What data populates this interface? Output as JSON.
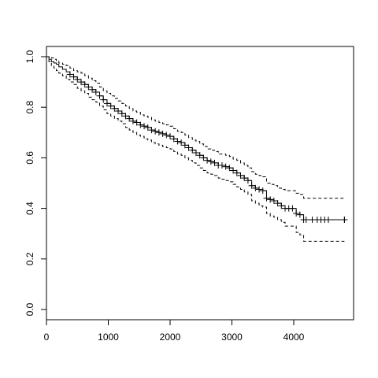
{
  "chart_data": {
    "type": "line",
    "title": "",
    "xlabel": "",
    "ylabel": "",
    "xlim": [
      0,
      4800
    ],
    "ylim": [
      0,
      1.0
    ],
    "x_ticks": [
      0,
      1000,
      2000,
      3000,
      4000
    ],
    "x_tick_labels": [
      "0",
      "1000",
      "2000",
      "3000",
      "4000"
    ],
    "y_ticks": [
      0,
      0.2,
      0.4,
      0.6,
      0.8,
      1.0
    ],
    "y_tick_labels": [
      "0.0",
      "0.2",
      "0.4",
      "0.6",
      "0.8",
      "1.0"
    ],
    "grid": false,
    "legend": "none",
    "series": [
      {
        "line_style": "solid",
        "color": "#000000",
        "censor_marks": true,
        "x": [
          0,
          40,
          80,
          120,
          160,
          200,
          260,
          320,
          380,
          440,
          500,
          560,
          620,
          680,
          740,
          800,
          860,
          920,
          980,
          1040,
          1100,
          1160,
          1220,
          1280,
          1340,
          1400,
          1460,
          1520,
          1580,
          1640,
          1700,
          1760,
          1820,
          1880,
          1940,
          2000,
          2060,
          2120,
          2180,
          2240,
          2300,
          2360,
          2420,
          2480,
          2540,
          2600,
          2660,
          2720,
          2780,
          2840,
          2900,
          2960,
          3020,
          3080,
          3140,
          3200,
          3260,
          3320,
          3380,
          3440,
          3500,
          3560,
          3620,
          3680,
          3740,
          3800,
          3860,
          3920,
          3980,
          4040,
          4100,
          4160,
          4200,
          4820
        ],
        "y": [
          1.0,
          0.99,
          0.98,
          0.975,
          0.97,
          0.96,
          0.95,
          0.94,
          0.93,
          0.92,
          0.91,
          0.9,
          0.89,
          0.88,
          0.87,
          0.86,
          0.845,
          0.83,
          0.815,
          0.805,
          0.795,
          0.785,
          0.775,
          0.765,
          0.755,
          0.745,
          0.74,
          0.73,
          0.725,
          0.72,
          0.71,
          0.705,
          0.7,
          0.695,
          0.69,
          0.685,
          0.675,
          0.665,
          0.66,
          0.65,
          0.64,
          0.63,
          0.62,
          0.61,
          0.6,
          0.59,
          0.585,
          0.58,
          0.57,
          0.57,
          0.565,
          0.56,
          0.55,
          0.54,
          0.53,
          0.52,
          0.51,
          0.49,
          0.48,
          0.475,
          0.47,
          0.44,
          0.435,
          0.43,
          0.42,
          0.41,
          0.4,
          0.4,
          0.4,
          0.38,
          0.375,
          0.355,
          0.355,
          0.355
        ]
      },
      {
        "line_style": "dashed",
        "color": "#000000",
        "x": [
          0,
          40,
          80,
          120,
          160,
          200,
          260,
          320,
          380,
          440,
          500,
          560,
          620,
          680,
          740,
          800,
          860,
          920,
          980,
          1040,
          1100,
          1160,
          1220,
          1280,
          1340,
          1400,
          1460,
          1520,
          1580,
          1640,
          1700,
          1760,
          1820,
          1880,
          1940,
          2000,
          2060,
          2120,
          2180,
          2240,
          2300,
          2360,
          2420,
          2480,
          2540,
          2600,
          2660,
          2720,
          2780,
          2840,
          2900,
          2960,
          3020,
          3080,
          3140,
          3200,
          3260,
          3320,
          3380,
          3440,
          3500,
          3560,
          3620,
          3680,
          3740,
          3800,
          3860,
          3920,
          3980,
          4040,
          4100,
          4160,
          4200,
          4820
        ],
        "y": [
          1.0,
          1.0,
          0.995,
          0.99,
          0.985,
          0.975,
          0.97,
          0.965,
          0.955,
          0.945,
          0.94,
          0.935,
          0.925,
          0.915,
          0.905,
          0.895,
          0.88,
          0.865,
          0.855,
          0.845,
          0.835,
          0.825,
          0.815,
          0.805,
          0.795,
          0.785,
          0.78,
          0.77,
          0.765,
          0.76,
          0.75,
          0.745,
          0.74,
          0.735,
          0.73,
          0.725,
          0.715,
          0.705,
          0.7,
          0.69,
          0.68,
          0.67,
          0.665,
          0.655,
          0.645,
          0.635,
          0.63,
          0.625,
          0.615,
          0.615,
          0.61,
          0.605,
          0.595,
          0.59,
          0.58,
          0.57,
          0.56,
          0.545,
          0.535,
          0.53,
          0.525,
          0.5,
          0.495,
          0.49,
          0.48,
          0.475,
          0.47,
          0.47,
          0.47,
          0.46,
          0.455,
          0.44,
          0.44,
          0.44
        ]
      },
      {
        "line_style": "dashed",
        "color": "#000000",
        "x": [
          0,
          40,
          80,
          120,
          160,
          200,
          260,
          320,
          380,
          440,
          500,
          560,
          620,
          680,
          740,
          800,
          860,
          920,
          980,
          1040,
          1100,
          1160,
          1220,
          1280,
          1340,
          1400,
          1460,
          1520,
          1580,
          1640,
          1700,
          1760,
          1820,
          1880,
          1940,
          2000,
          2060,
          2120,
          2180,
          2240,
          2300,
          2360,
          2420,
          2480,
          2540,
          2600,
          2660,
          2720,
          2780,
          2840,
          2900,
          2960,
          3020,
          3080,
          3140,
          3200,
          3260,
          3320,
          3380,
          3440,
          3500,
          3560,
          3620,
          3680,
          3740,
          3800,
          3860,
          3920,
          3980,
          4040,
          4100,
          4160,
          4200,
          4820
        ],
        "y": [
          1.0,
          0.98,
          0.965,
          0.955,
          0.945,
          0.935,
          0.925,
          0.91,
          0.9,
          0.89,
          0.875,
          0.865,
          0.855,
          0.84,
          0.83,
          0.82,
          0.805,
          0.79,
          0.775,
          0.765,
          0.755,
          0.745,
          0.735,
          0.72,
          0.71,
          0.7,
          0.69,
          0.685,
          0.675,
          0.67,
          0.66,
          0.655,
          0.65,
          0.645,
          0.64,
          0.635,
          0.625,
          0.615,
          0.61,
          0.6,
          0.59,
          0.58,
          0.57,
          0.56,
          0.55,
          0.54,
          0.535,
          0.53,
          0.52,
          0.515,
          0.51,
          0.505,
          0.495,
          0.485,
          0.475,
          0.465,
          0.455,
          0.43,
          0.42,
          0.41,
          0.405,
          0.38,
          0.37,
          0.365,
          0.355,
          0.345,
          0.33,
          0.33,
          0.33,
          0.305,
          0.295,
          0.27,
          0.27,
          0.27
        ]
      }
    ]
  }
}
